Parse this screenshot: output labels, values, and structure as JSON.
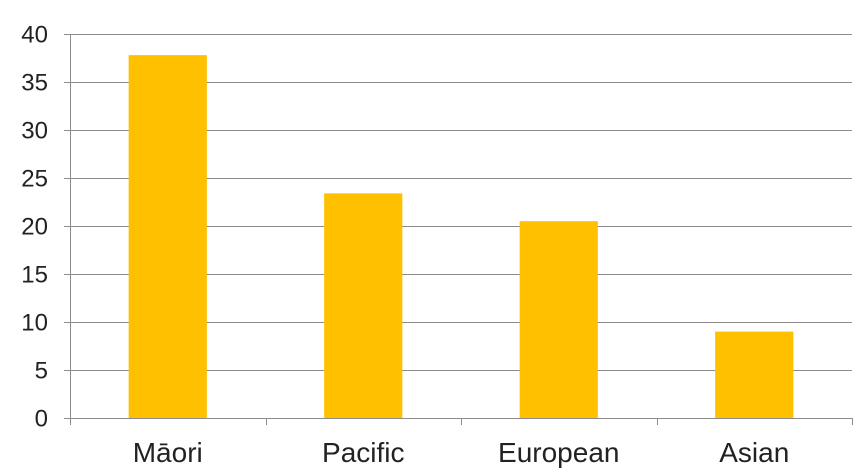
{
  "chart_data": {
    "type": "bar",
    "categories": [
      "Māori",
      "Pacific",
      "European",
      "Asian"
    ],
    "values": [
      37.8,
      23.4,
      20.5,
      9.0
    ],
    "title": "",
    "xlabel": "",
    "ylabel": "",
    "ylim": [
      0,
      40
    ],
    "yticks": [
      0,
      5,
      10,
      15,
      20,
      25,
      30,
      35,
      40
    ],
    "grid": true,
    "legend": "none",
    "colors": {
      "bar": "#FFC000",
      "grid": "#8c8c8c",
      "axis": "#8c8c8c",
      "text": "#222222"
    }
  }
}
